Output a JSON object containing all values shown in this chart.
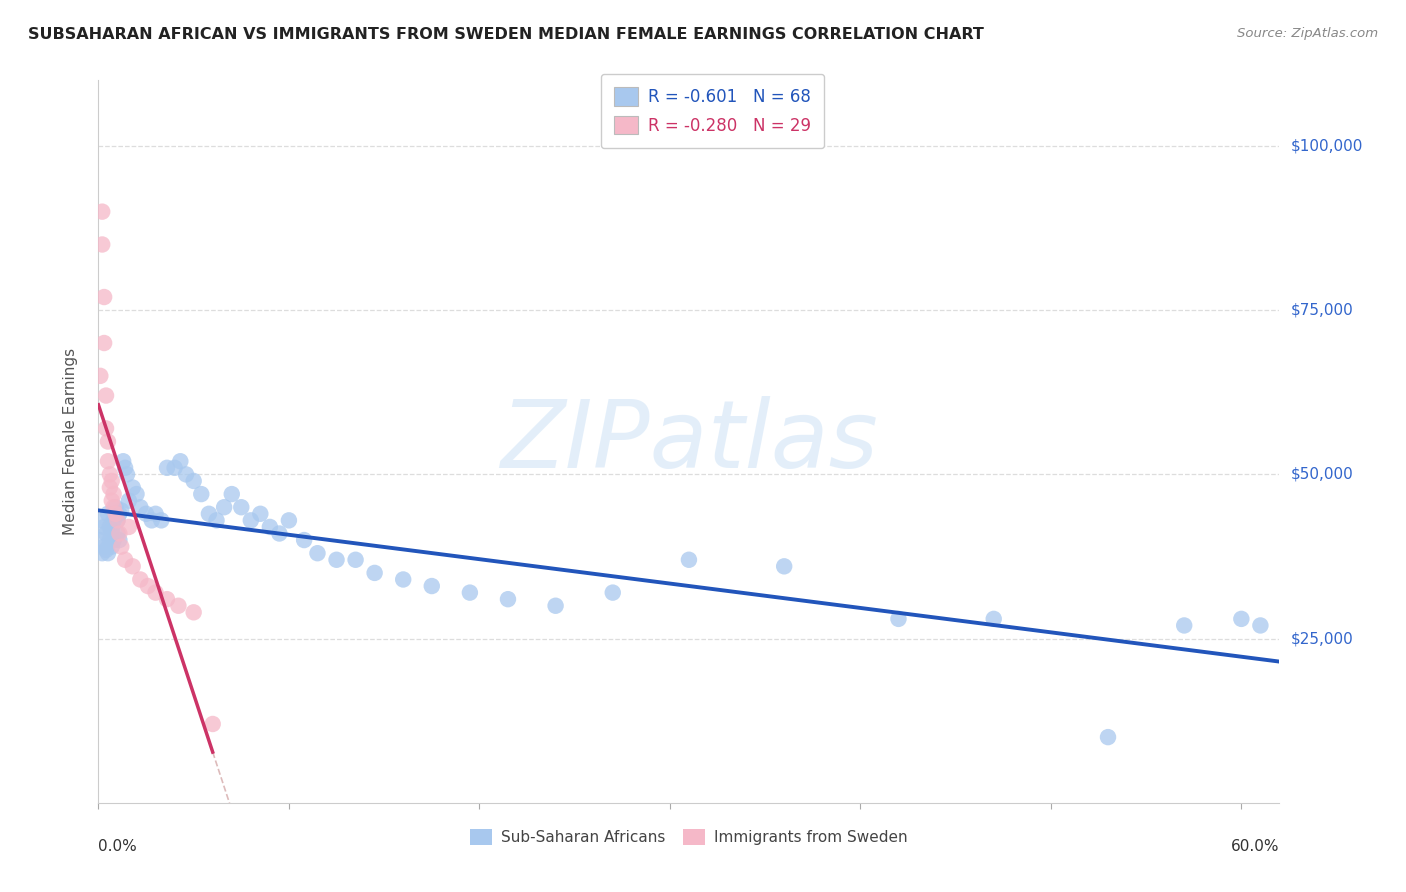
{
  "title": "SUBSAHARAN AFRICAN VS IMMIGRANTS FROM SWEDEN MEDIAN FEMALE EARNINGS CORRELATION CHART",
  "source": "Source: ZipAtlas.com",
  "ylabel": "Median Female Earnings",
  "ytick_labels": [
    "$25,000",
    "$50,000",
    "$75,000",
    "$100,000"
  ],
  "ytick_values": [
    25000,
    50000,
    75000,
    100000
  ],
  "ymin": 0,
  "ymax": 110000,
  "xmin": 0.0,
  "xmax": 0.62,
  "legend_blue_r": "-0.601",
  "legend_blue_n": "68",
  "legend_pink_r": "-0.280",
  "legend_pink_n": "29",
  "legend_blue_label": "Sub-Saharan Africans",
  "legend_pink_label": "Immigrants from Sweden",
  "blue_color": "#a8c8ee",
  "pink_color": "#f5b8c8",
  "blue_line_color": "#2255bb",
  "pink_line_color": "#cc3366",
  "dashed_line_color": "#ddbbbb",
  "grid_color": "#dddddd",
  "watermark_text": "ZIPatlas",
  "blue_scatter_x": [
    0.001,
    0.002,
    0.002,
    0.003,
    0.003,
    0.004,
    0.004,
    0.005,
    0.005,
    0.006,
    0.006,
    0.007,
    0.007,
    0.008,
    0.008,
    0.009,
    0.009,
    0.01,
    0.01,
    0.011,
    0.011,
    0.012,
    0.013,
    0.014,
    0.015,
    0.016,
    0.018,
    0.02,
    0.022,
    0.025,
    0.028,
    0.03,
    0.033,
    0.036,
    0.04,
    0.043,
    0.046,
    0.05,
    0.054,
    0.058,
    0.062,
    0.066,
    0.07,
    0.075,
    0.08,
    0.085,
    0.09,
    0.095,
    0.1,
    0.108,
    0.115,
    0.125,
    0.135,
    0.145,
    0.16,
    0.175,
    0.195,
    0.215,
    0.24,
    0.27,
    0.31,
    0.36,
    0.42,
    0.47,
    0.53,
    0.57,
    0.6,
    0.61
  ],
  "blue_scatter_y": [
    40000,
    43000,
    38000,
    42000,
    39000,
    41000,
    38500,
    44000,
    38000,
    42000,
    40000,
    39000,
    41500,
    40000,
    43000,
    44000,
    45000,
    43000,
    41000,
    44000,
    40000,
    44500,
    52000,
    51000,
    50000,
    46000,
    48000,
    47000,
    45000,
    44000,
    43000,
    44000,
    43000,
    51000,
    51000,
    52000,
    50000,
    49000,
    47000,
    44000,
    43000,
    45000,
    47000,
    45000,
    43000,
    44000,
    42000,
    41000,
    43000,
    40000,
    38000,
    37000,
    37000,
    35000,
    34000,
    33000,
    32000,
    31000,
    30000,
    32000,
    37000,
    36000,
    28000,
    28000,
    10000,
    27000,
    28000,
    27000
  ],
  "pink_scatter_x": [
    0.001,
    0.002,
    0.002,
    0.003,
    0.003,
    0.004,
    0.004,
    0.005,
    0.005,
    0.006,
    0.006,
    0.007,
    0.007,
    0.008,
    0.008,
    0.009,
    0.01,
    0.011,
    0.012,
    0.014,
    0.016,
    0.018,
    0.022,
    0.026,
    0.03,
    0.036,
    0.042,
    0.05,
    0.06
  ],
  "pink_scatter_y": [
    65000,
    85000,
    90000,
    70000,
    77000,
    62000,
    57000,
    55000,
    52000,
    50000,
    48000,
    46000,
    49000,
    47000,
    45000,
    44000,
    43000,
    41000,
    39000,
    37000,
    42000,
    36000,
    34000,
    33000,
    32000,
    31000,
    30000,
    29000,
    12000
  ]
}
